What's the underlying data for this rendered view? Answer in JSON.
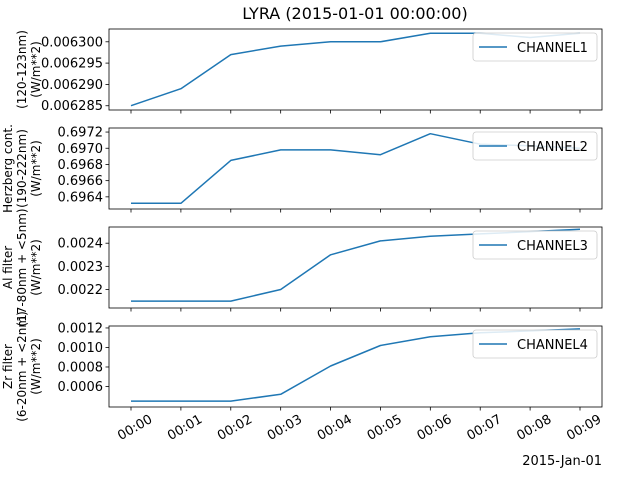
{
  "chart_data": {
    "type": "line",
    "title": "LYRA (2015-01-01 00:00:00)",
    "x": [
      "00:00",
      "00:01",
      "00:02",
      "00:03",
      "00:04",
      "00:05",
      "00:06",
      "00:07",
      "00:08",
      "00:09"
    ],
    "x_tick_labels": [
      "00:00",
      "00:01",
      "00:02",
      "00:03",
      "00:04",
      "00:05",
      "00:06",
      "00:07",
      "00:08",
      "00:09"
    ],
    "x_offset_label": "2015-Jan-01",
    "line_color": "#1f77b4",
    "legend_position": "upper right",
    "grid": false,
    "subplots": [
      {
        "ylabel": [
          "(120-123nm)",
          "(W/m**2)"
        ],
        "ylim": [
          0.006284,
          0.006303
        ],
        "yticks": [
          0.006285,
          0.00629,
          0.006295,
          0.0063
        ],
        "ytick_labels": [
          "0.006285",
          "0.006290",
          "0.006295",
          "0.006300"
        ],
        "series": [
          {
            "name": "CHANNEL1",
            "values": [
              0.006285,
              0.006289,
              0.006297,
              0.006299,
              0.0063,
              0.0063,
              0.006302,
              0.006302,
              0.006301,
              0.006302
            ]
          }
        ]
      },
      {
        "ylabel": [
          "Herzberg cont.",
          "(190-222nm)",
          "(W/m**2)"
        ],
        "ylim": [
          0.69625,
          0.69725
        ],
        "yticks": [
          0.6964,
          0.6966,
          0.6968,
          0.697,
          0.6972
        ],
        "ytick_labels": [
          "0.6964",
          "0.6966",
          "0.6968",
          "0.6970",
          "0.6972"
        ],
        "series": [
          {
            "name": "CHANNEL2",
            "values": [
              0.69632,
              0.69632,
              0.69685,
              0.69698,
              0.69698,
              0.69692,
              0.69718,
              0.69705,
              0.69703,
              0.697
            ]
          }
        ]
      },
      {
        "ylabel": [
          "Al filter",
          "(17-80nm + <5nm)",
          "(W/m**2)"
        ],
        "ylim": [
          0.00212,
          0.00247
        ],
        "yticks": [
          0.0022,
          0.0023,
          0.0024
        ],
        "ytick_labels": [
          "0.0022",
          "0.0023",
          "0.0024"
        ],
        "series": [
          {
            "name": "CHANNEL3",
            "values": [
              0.00215,
              0.00215,
              0.00215,
              0.0022,
              0.00235,
              0.00241,
              0.00243,
              0.00244,
              0.00245,
              0.00246
            ]
          }
        ]
      },
      {
        "ylabel": [
          "Zr filter",
          "(6-20nm + <2nm)",
          "(W/m**2)"
        ],
        "ylim": [
          0.00039,
          0.00122
        ],
        "yticks": [
          0.0006,
          0.0008,
          0.001,
          0.0012
        ],
        "ytick_labels": [
          "0.0006",
          "0.0008",
          "0.0010",
          "0.0012"
        ],
        "series": [
          {
            "name": "CHANNEL4",
            "values": [
              0.00045,
              0.00045,
              0.00045,
              0.00052,
              0.00081,
              0.00102,
              0.00111,
              0.00115,
              0.00117,
              0.00119
            ]
          }
        ]
      }
    ]
  }
}
